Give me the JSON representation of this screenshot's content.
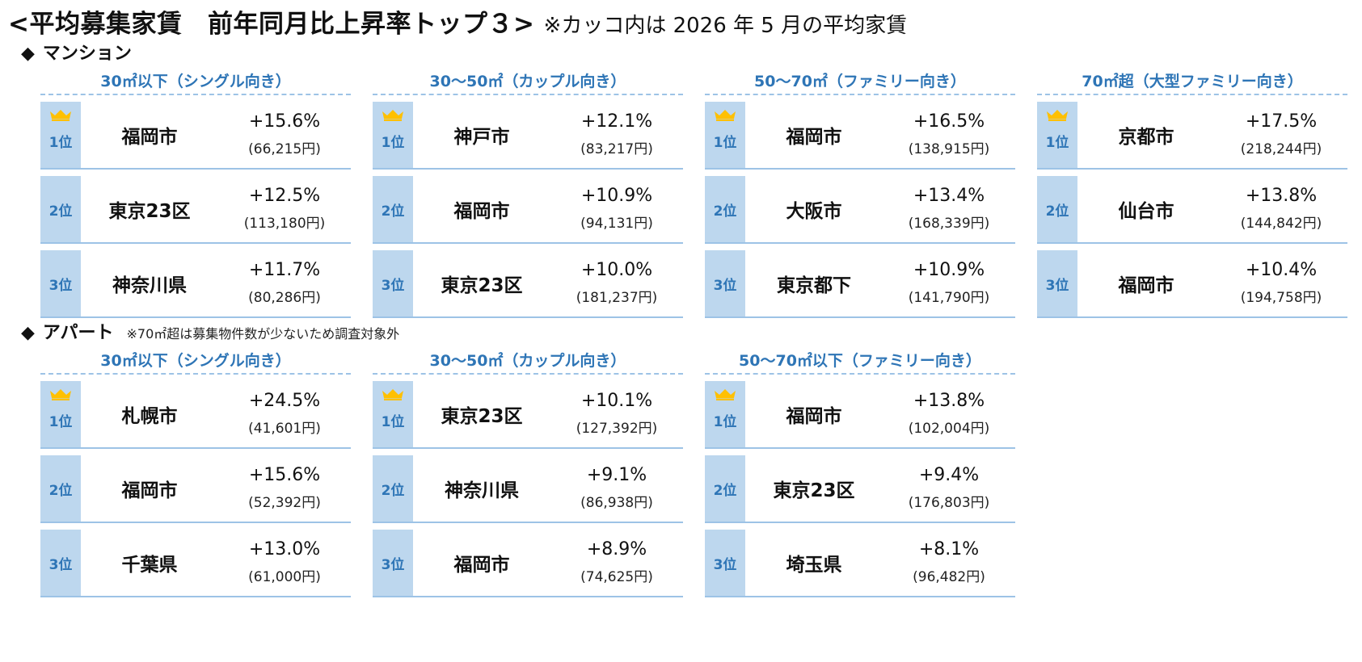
{
  "title": {
    "main": "<平均募集家賃　前年同月比上昇率トップ３>",
    "note": "※カッコ内は 2026 年 5 月の平均家賃"
  },
  "icons": {
    "crown": "crown-icon",
    "crown_color": "#ffc000",
    "accent": "#2e75b6",
    "rank_bg": "#bdd7ee",
    "rule": "#9dc3e6"
  },
  "mansion": {
    "heading": "マンション",
    "marker": "◆",
    "groups": [
      {
        "title": "30㎡以下（シングル向き）",
        "rows": [
          {
            "rank": "1位",
            "city": "福岡市",
            "rate": "+15.6%",
            "rent": "(66,215円)"
          },
          {
            "rank": "2位",
            "city": "東京23区",
            "rate": "+12.5%",
            "rent": "(113,180円)"
          },
          {
            "rank": "3位",
            "city": "神奈川県",
            "rate": "+11.7%",
            "rent": "(80,286円)"
          }
        ]
      },
      {
        "title": "30〜50㎡（カップル向き）",
        "rows": [
          {
            "rank": "1位",
            "city": "神戸市",
            "rate": "+12.1%",
            "rent": "(83,217円)"
          },
          {
            "rank": "2位",
            "city": "福岡市",
            "rate": "+10.9%",
            "rent": "(94,131円)"
          },
          {
            "rank": "3位",
            "city": "東京23区",
            "rate": "+10.0%",
            "rent": "(181,237円)"
          }
        ]
      },
      {
        "title": "50〜70㎡（ファミリー向き）",
        "rows": [
          {
            "rank": "1位",
            "city": "福岡市",
            "rate": "+16.5%",
            "rent": "(138,915円)"
          },
          {
            "rank": "2位",
            "city": "大阪市",
            "rate": "+13.4%",
            "rent": "(168,339円)"
          },
          {
            "rank": "3位",
            "city": "東京都下",
            "rate": "+10.9%",
            "rent": "(141,790円)"
          }
        ]
      },
      {
        "title": "70㎡超（大型ファミリー向き）",
        "rows": [
          {
            "rank": "1位",
            "city": "京都市",
            "rate": "+17.5%",
            "rent": "(218,244円)"
          },
          {
            "rank": "2位",
            "city": "仙台市",
            "rate": "+13.8%",
            "rent": "(144,842円)"
          },
          {
            "rank": "3位",
            "city": "福岡市",
            "rate": "+10.4%",
            "rent": "(194,758円)"
          }
        ]
      }
    ]
  },
  "apart": {
    "heading": "アパート",
    "marker": "◆",
    "note": "※70㎡超は募集物件数が少ないため調査対象外",
    "groups": [
      {
        "title": "30㎡以下（シングル向き）",
        "rows": [
          {
            "rank": "1位",
            "city": "札幌市",
            "rate": "+24.5%",
            "rent": "(41,601円)"
          },
          {
            "rank": "2位",
            "city": "福岡市",
            "rate": "+15.6%",
            "rent": "(52,392円)"
          },
          {
            "rank": "3位",
            "city": "千葉県",
            "rate": "+13.0%",
            "rent": "(61,000円)"
          }
        ]
      },
      {
        "title": "30〜50㎡（カップル向き）",
        "rows": [
          {
            "rank": "1位",
            "city": "東京23区",
            "rate": "+10.1%",
            "rent": "(127,392円)"
          },
          {
            "rank": "2位",
            "city": "神奈川県",
            "rate": "+9.1%",
            "rent": "(86,938円)"
          },
          {
            "rank": "3位",
            "city": "福岡市",
            "rate": "+8.9%",
            "rent": "(74,625円)"
          }
        ]
      },
      {
        "title": "50〜70㎡以下（ファミリー向き）",
        "rows": [
          {
            "rank": "1位",
            "city": "福岡市",
            "rate": "+13.8%",
            "rent": "(102,004円)"
          },
          {
            "rank": "2位",
            "city": "東京23区",
            "rate": "+9.4%",
            "rent": "(176,803円)"
          },
          {
            "rank": "3位",
            "city": "埼玉県",
            "rate": "+8.1%",
            "rent": "(96,482円)"
          }
        ]
      }
    ]
  }
}
